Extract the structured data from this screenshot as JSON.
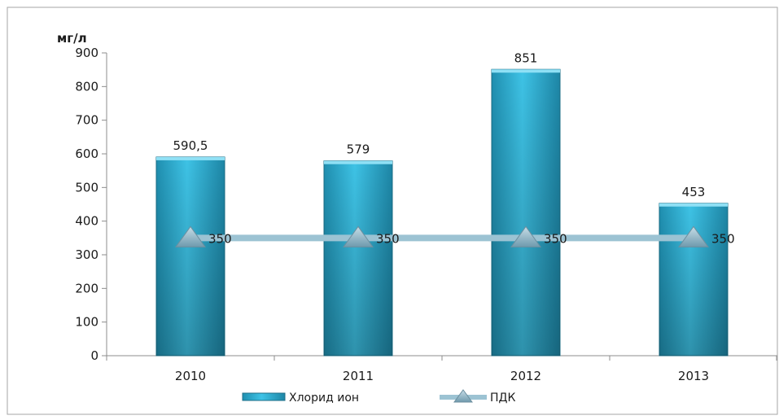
{
  "chart_data": {
    "type": "bar",
    "categories": [
      "2010",
      "2011",
      "2012",
      "2013"
    ],
    "series": [
      {
        "name": "Хлорид ион",
        "type": "bar",
        "values": [
          590.5,
          579,
          851,
          453
        ],
        "labels": [
          "590,5",
          "579",
          "851",
          "453"
        ],
        "color": "#35b8dc"
      },
      {
        "name": "ПДК",
        "type": "line",
        "values": [
          350,
          350,
          350,
          350
        ],
        "labels": [
          "350",
          "350",
          "350",
          "350"
        ],
        "color": "#9cc3d3",
        "marker": "triangle"
      }
    ],
    "ylabel": "мг/л",
    "ylim": [
      0,
      900
    ],
    "yticks": [
      "0",
      "100",
      "200",
      "300",
      "400",
      "500",
      "600",
      "700",
      "800",
      "900"
    ],
    "grid": false,
    "legend": "bottom"
  }
}
